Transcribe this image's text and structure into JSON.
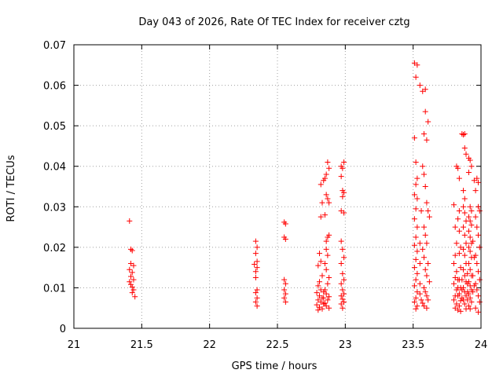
{
  "chart_data": {
    "type": "scatter",
    "title": "Day 043 of 2026, Rate Of TEC Index for receiver cztg",
    "xlabel": "GPS time / hours",
    "ylabel": "ROTI / TECUs",
    "xlim": [
      21,
      24
    ],
    "ylim": [
      0,
      0.07
    ],
    "xticks": [
      21,
      21.5,
      22,
      22.5,
      23,
      23.5,
      24
    ],
    "xtick_labels": [
      "21",
      "21.5",
      "22",
      "22.5",
      "23",
      "23.5",
      "24"
    ],
    "yticks": [
      0,
      0.01,
      0.02,
      0.03,
      0.04,
      0.05,
      0.06,
      0.07
    ],
    "ytick_labels": [
      "0",
      "0.01",
      "0.02",
      "0.03",
      "0.04",
      "0.05",
      "0.06",
      "0.07"
    ],
    "grid": true,
    "marker": "+",
    "color": "#ff0000",
    "series": [
      {
        "name": "ROTI",
        "points": [
          [
            21.41,
            0.0265
          ],
          [
            21.42,
            0.0195
          ],
          [
            21.43,
            0.0192
          ],
          [
            21.42,
            0.016
          ],
          [
            21.44,
            0.0155
          ],
          [
            21.41,
            0.0145
          ],
          [
            21.43,
            0.0138
          ],
          [
            21.42,
            0.0128
          ],
          [
            21.44,
            0.012
          ],
          [
            21.41,
            0.0115
          ],
          [
            21.42,
            0.0108
          ],
          [
            21.43,
            0.0102
          ],
          [
            21.44,
            0.0095
          ],
          [
            21.43,
            0.0088
          ],
          [
            21.45,
            0.0078
          ],
          [
            22.34,
            0.0215
          ],
          [
            22.35,
            0.02
          ],
          [
            22.34,
            0.0185
          ],
          [
            22.35,
            0.0165
          ],
          [
            22.33,
            0.0158
          ],
          [
            22.35,
            0.015
          ],
          [
            22.34,
            0.014
          ],
          [
            22.34,
            0.0125
          ],
          [
            22.35,
            0.0095
          ],
          [
            22.34,
            0.0088
          ],
          [
            22.35,
            0.0075
          ],
          [
            22.34,
            0.0065
          ],
          [
            22.35,
            0.0055
          ],
          [
            22.55,
            0.0262
          ],
          [
            22.56,
            0.0258
          ],
          [
            22.55,
            0.0225
          ],
          [
            22.56,
            0.022
          ],
          [
            22.55,
            0.012
          ],
          [
            22.56,
            0.011
          ],
          [
            22.55,
            0.0095
          ],
          [
            22.56,
            0.0085
          ],
          [
            22.55,
            0.0075
          ],
          [
            22.56,
            0.0065
          ],
          [
            22.81,
            0.0185
          ],
          [
            22.82,
            0.0165
          ],
          [
            22.8,
            0.0155
          ],
          [
            22.83,
            0.013
          ],
          [
            22.81,
            0.0115
          ],
          [
            22.8,
            0.0105
          ],
          [
            22.82,
            0.0095
          ],
          [
            22.79,
            0.0088
          ],
          [
            22.81,
            0.008
          ],
          [
            22.83,
            0.0075
          ],
          [
            22.8,
            0.007
          ],
          [
            22.82,
            0.0065
          ],
          [
            22.79,
            0.0058
          ],
          [
            22.81,
            0.0052
          ],
          [
            22.8,
            0.0045
          ],
          [
            22.83,
            0.0048
          ],
          [
            22.82,
            0.0275
          ],
          [
            22.83,
            0.031
          ],
          [
            22.84,
            0.0365
          ],
          [
            22.82,
            0.0355
          ],
          [
            22.85,
            0.037
          ],
          [
            22.86,
            0.038
          ],
          [
            22.87,
            0.041
          ],
          [
            22.88,
            0.0395
          ],
          [
            22.86,
            0.033
          ],
          [
            22.87,
            0.032
          ],
          [
            22.88,
            0.031
          ],
          [
            22.85,
            0.028
          ],
          [
            22.86,
            0.0215
          ],
          [
            22.87,
            0.0225
          ],
          [
            22.88,
            0.023
          ],
          [
            22.86,
            0.0195
          ],
          [
            22.87,
            0.018
          ],
          [
            22.85,
            0.016
          ],
          [
            22.86,
            0.0145
          ],
          [
            22.88,
            0.0125
          ],
          [
            22.87,
            0.011
          ],
          [
            22.85,
            0.0095
          ],
          [
            22.86,
            0.0085
          ],
          [
            22.88,
            0.0078
          ],
          [
            22.87,
            0.007
          ],
          [
            22.85,
            0.0062
          ],
          [
            22.86,
            0.0055
          ],
          [
            22.88,
            0.005
          ],
          [
            22.84,
            0.009
          ],
          [
            22.84,
            0.0075
          ],
          [
            22.84,
            0.006
          ],
          [
            22.97,
            0.04
          ],
          [
            22.99,
            0.041
          ],
          [
            22.98,
            0.0395
          ],
          [
            22.97,
            0.0375
          ],
          [
            22.98,
            0.034
          ],
          [
            22.99,
            0.0335
          ],
          [
            22.98,
            0.0325
          ],
          [
            22.97,
            0.029
          ],
          [
            22.99,
            0.0285
          ],
          [
            22.97,
            0.0215
          ],
          [
            22.98,
            0.0195
          ],
          [
            22.99,
            0.0175
          ],
          [
            22.97,
            0.016
          ],
          [
            22.98,
            0.0135
          ],
          [
            22.99,
            0.012
          ],
          [
            22.97,
            0.011
          ],
          [
            22.98,
            0.0095
          ],
          [
            22.99,
            0.0085
          ],
          [
            22.97,
            0.008
          ],
          [
            22.98,
            0.0072
          ],
          [
            22.99,
            0.0065
          ],
          [
            22.97,
            0.006
          ],
          [
            22.98,
            0.005
          ],
          [
            23.51,
            0.0655
          ],
          [
            23.53,
            0.065
          ],
          [
            23.52,
            0.062
          ],
          [
            23.55,
            0.06
          ],
          [
            23.57,
            0.0585
          ],
          [
            23.59,
            0.059
          ],
          [
            23.59,
            0.0535
          ],
          [
            23.61,
            0.051
          ],
          [
            23.51,
            0.047
          ],
          [
            23.58,
            0.048
          ],
          [
            23.6,
            0.0465
          ],
          [
            23.52,
            0.041
          ],
          [
            23.53,
            0.037
          ],
          [
            23.52,
            0.0355
          ],
          [
            23.51,
            0.033
          ],
          [
            23.53,
            0.032
          ],
          [
            23.52,
            0.0295
          ],
          [
            23.51,
            0.027
          ],
          [
            23.53,
            0.025
          ],
          [
            23.52,
            0.0225
          ],
          [
            23.51,
            0.0205
          ],
          [
            23.53,
            0.019
          ],
          [
            23.52,
            0.017
          ],
          [
            23.51,
            0.015
          ],
          [
            23.53,
            0.0135
          ],
          [
            23.52,
            0.012
          ],
          [
            23.51,
            0.0105
          ],
          [
            23.53,
            0.009
          ],
          [
            23.52,
            0.0075
          ],
          [
            23.51,
            0.0065
          ],
          [
            23.53,
            0.0055
          ],
          [
            23.52,
            0.0048
          ],
          [
            23.57,
            0.04
          ],
          [
            23.58,
            0.038
          ],
          [
            23.59,
            0.035
          ],
          [
            23.6,
            0.031
          ],
          [
            23.61,
            0.029
          ],
          [
            23.62,
            0.0275
          ],
          [
            23.58,
            0.025
          ],
          [
            23.59,
            0.023
          ],
          [
            23.6,
            0.021
          ],
          [
            23.57,
            0.0195
          ],
          [
            23.58,
            0.0175
          ],
          [
            23.61,
            0.016
          ],
          [
            23.59,
            0.0145
          ],
          [
            23.6,
            0.013
          ],
          [
            23.62,
            0.0115
          ],
          [
            23.58,
            0.01
          ],
          [
            23.59,
            0.009
          ],
          [
            23.6,
            0.008
          ],
          [
            23.61,
            0.007
          ],
          [
            23.57,
            0.0062
          ],
          [
            23.58,
            0.0055
          ],
          [
            23.6,
            0.005
          ],
          [
            23.55,
            0.0085
          ],
          [
            23.55,
            0.011
          ],
          [
            23.55,
            0.016
          ],
          [
            23.55,
            0.021
          ],
          [
            23.56,
            0.029
          ],
          [
            23.56,
            0.007
          ],
          [
            23.8,
            0.0305
          ],
          [
            23.81,
            0.025
          ],
          [
            23.82,
            0.021
          ],
          [
            23.81,
            0.018
          ],
          [
            23.8,
            0.016
          ],
          [
            23.82,
            0.014
          ],
          [
            23.81,
            0.0125
          ],
          [
            23.8,
            0.011
          ],
          [
            23.82,
            0.0095
          ],
          [
            23.81,
            0.008
          ],
          [
            23.8,
            0.007
          ],
          [
            23.82,
            0.006
          ],
          [
            23.81,
            0.005
          ],
          [
            23.83,
            0.0045
          ],
          [
            23.82,
            0.04
          ],
          [
            23.83,
            0.0395
          ],
          [
            23.84,
            0.037
          ],
          [
            23.84,
            0.029
          ],
          [
            23.83,
            0.027
          ],
          [
            23.84,
            0.024
          ],
          [
            23.85,
            0.02
          ],
          [
            23.84,
            0.0185
          ],
          [
            23.85,
            0.015
          ],
          [
            23.84,
            0.012
          ],
          [
            23.85,
            0.01
          ],
          [
            23.84,
            0.0085
          ],
          [
            23.85,
            0.0068
          ],
          [
            23.84,
            0.0055
          ],
          [
            23.85,
            0.0042
          ],
          [
            23.86,
            0.048
          ],
          [
            23.87,
            0.0478
          ],
          [
            23.88,
            0.048
          ],
          [
            23.88,
            0.0445
          ],
          [
            23.89,
            0.043
          ],
          [
            23.87,
            0.034
          ],
          [
            23.88,
            0.032
          ],
          [
            23.87,
            0.03
          ],
          [
            23.88,
            0.0285
          ],
          [
            23.89,
            0.0265
          ],
          [
            23.87,
            0.025
          ],
          [
            23.88,
            0.023
          ],
          [
            23.89,
            0.021
          ],
          [
            23.87,
            0.0195
          ],
          [
            23.88,
            0.018
          ],
          [
            23.89,
            0.016
          ],
          [
            23.87,
            0.0145
          ],
          [
            23.88,
            0.013
          ],
          [
            23.89,
            0.0115
          ],
          [
            23.87,
            0.01
          ],
          [
            23.88,
            0.009
          ],
          [
            23.89,
            0.008
          ],
          [
            23.87,
            0.007
          ],
          [
            23.88,
            0.006
          ],
          [
            23.89,
            0.0048
          ],
          [
            23.91,
            0.042
          ],
          [
            23.92,
            0.0415
          ],
          [
            23.93,
            0.04
          ],
          [
            23.91,
            0.0385
          ],
          [
            23.92,
            0.03
          ],
          [
            23.93,
            0.029
          ],
          [
            23.91,
            0.0275
          ],
          [
            23.92,
            0.0265
          ],
          [
            23.93,
            0.0255
          ],
          [
            23.91,
            0.024
          ],
          [
            23.92,
            0.0225
          ],
          [
            23.93,
            0.021
          ],
          [
            23.91,
            0.02
          ],
          [
            23.92,
            0.019
          ],
          [
            23.93,
            0.0175
          ],
          [
            23.91,
            0.016
          ],
          [
            23.92,
            0.0145
          ],
          [
            23.93,
            0.013
          ],
          [
            23.91,
            0.0115
          ],
          [
            23.92,
            0.0105
          ],
          [
            23.93,
            0.0095
          ],
          [
            23.91,
            0.0085
          ],
          [
            23.92,
            0.0075
          ],
          [
            23.93,
            0.0065
          ],
          [
            23.91,
            0.0055
          ],
          [
            23.92,
            0.0048
          ],
          [
            23.95,
            0.0365
          ],
          [
            23.97,
            0.037
          ],
          [
            23.98,
            0.036
          ],
          [
            23.96,
            0.034
          ],
          [
            23.98,
            0.03
          ],
          [
            23.99,
            0.029
          ],
          [
            23.96,
            0.0275
          ],
          [
            23.97,
            0.025
          ],
          [
            23.98,
            0.023
          ],
          [
            23.99,
            0.02
          ],
          [
            23.96,
            0.018
          ],
          [
            23.97,
            0.016
          ],
          [
            23.98,
            0.014
          ],
          [
            23.99,
            0.012
          ],
          [
            23.96,
            0.011
          ],
          [
            23.97,
            0.0095
          ],
          [
            23.98,
            0.008
          ],
          [
            23.99,
            0.0065
          ],
          [
            23.96,
            0.005
          ],
          [
            23.98,
            0.004
          ],
          [
            23.94,
            0.0215
          ],
          [
            23.94,
            0.013
          ],
          [
            23.94,
            0.009
          ],
          [
            23.95,
            0.0105
          ],
          [
            23.95,
            0.0175
          ],
          [
            23.86,
            0.012
          ],
          [
            23.86,
            0.0095
          ],
          [
            23.86,
            0.0075
          ],
          [
            23.9,
            0.011
          ],
          [
            23.9,
            0.009
          ],
          [
            23.9,
            0.007
          ],
          [
            23.9,
            0.0135
          ],
          [
            23.83,
            0.01
          ],
          [
            23.83,
            0.008
          ],
          [
            23.83,
            0.012
          ]
        ]
      }
    ]
  }
}
